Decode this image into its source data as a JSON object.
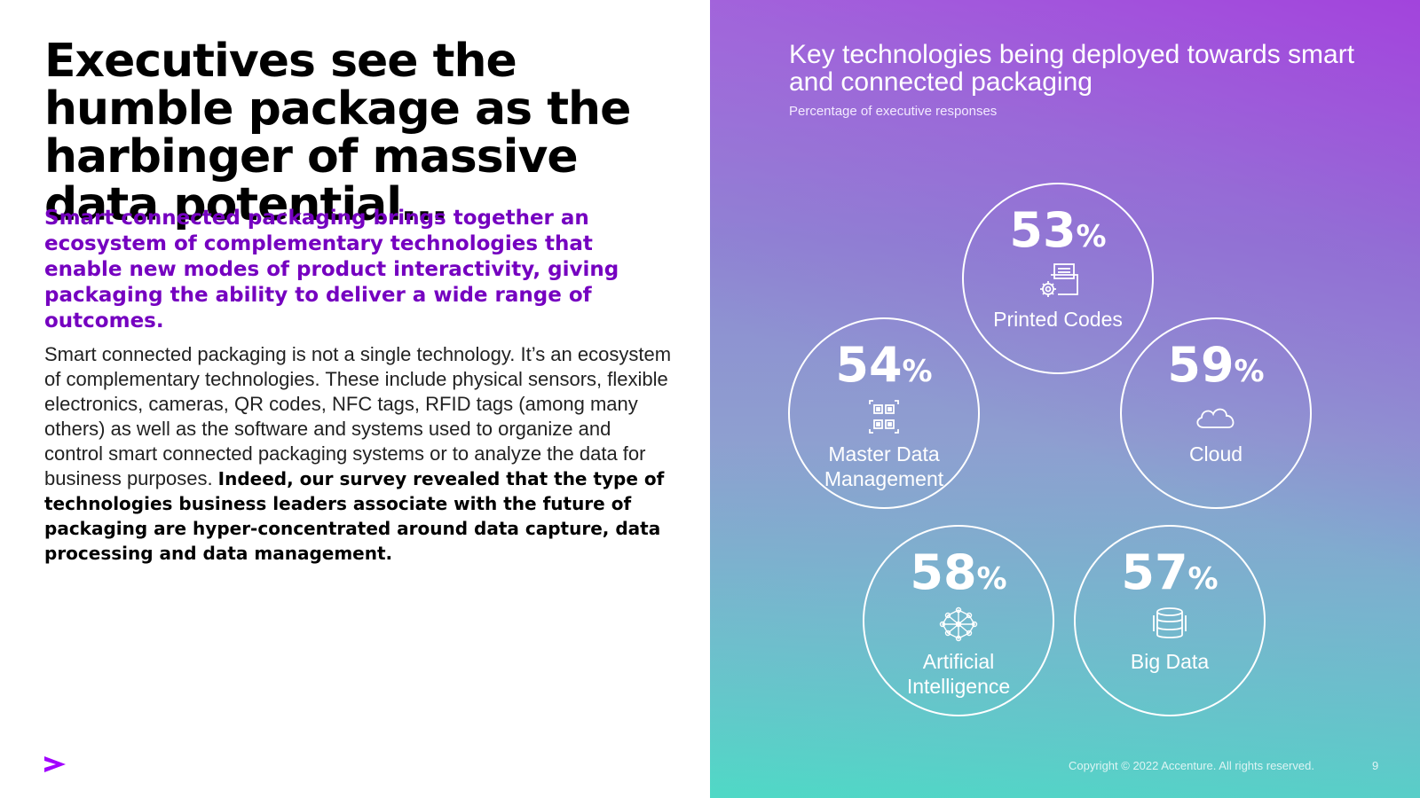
{
  "left": {
    "title": "Executives see the humble package as the harbinger of massive data potential…",
    "lead": "Smart connected packaging brings together an ecosystem of complementary technologies that enable new modes of product interactivity, giving packaging the ability to deliver a wide range of outcomes.",
    "body": "Smart connected packaging is not a single technology. It’s an ecosystem of complementary technologies. These include physical sensors, flexible electronics, cameras, QR codes, NFC tags, RFID tags (among many others) as well as the software and systems used to organize and control smart connected packaging systems or to analyze the data for business purposes. ",
    "body_strong": "Indeed, our survey revealed that the type of technologies business leaders associate with the future of packaging are hyper-concentrated around data capture, data processing and data management."
  },
  "colors": {
    "accent": "#7500c0",
    "logo": "#a100ff"
  },
  "chart_data": {
    "type": "bubble",
    "title": "Key technologies being deployed towards smart and connected packaging",
    "subtitle": "Percentage of executive responses",
    "unit": "%",
    "items": [
      {
        "label": "Printed Codes",
        "value": 53,
        "icon": "printed-codes-icon"
      },
      {
        "label": "Master Data Management",
        "value": 54,
        "icon": "qr-code-icon"
      },
      {
        "label": "Cloud",
        "value": 59,
        "icon": "cloud-icon"
      },
      {
        "label": "Artificial Intelligence",
        "value": 58,
        "icon": "neural-network-icon"
      },
      {
        "label": "Big Data",
        "value": 57,
        "icon": "database-icon"
      }
    ]
  },
  "footer": {
    "copyright": "Copyright © 2022 Accenture. All rights reserved.",
    "page_number": "9"
  }
}
